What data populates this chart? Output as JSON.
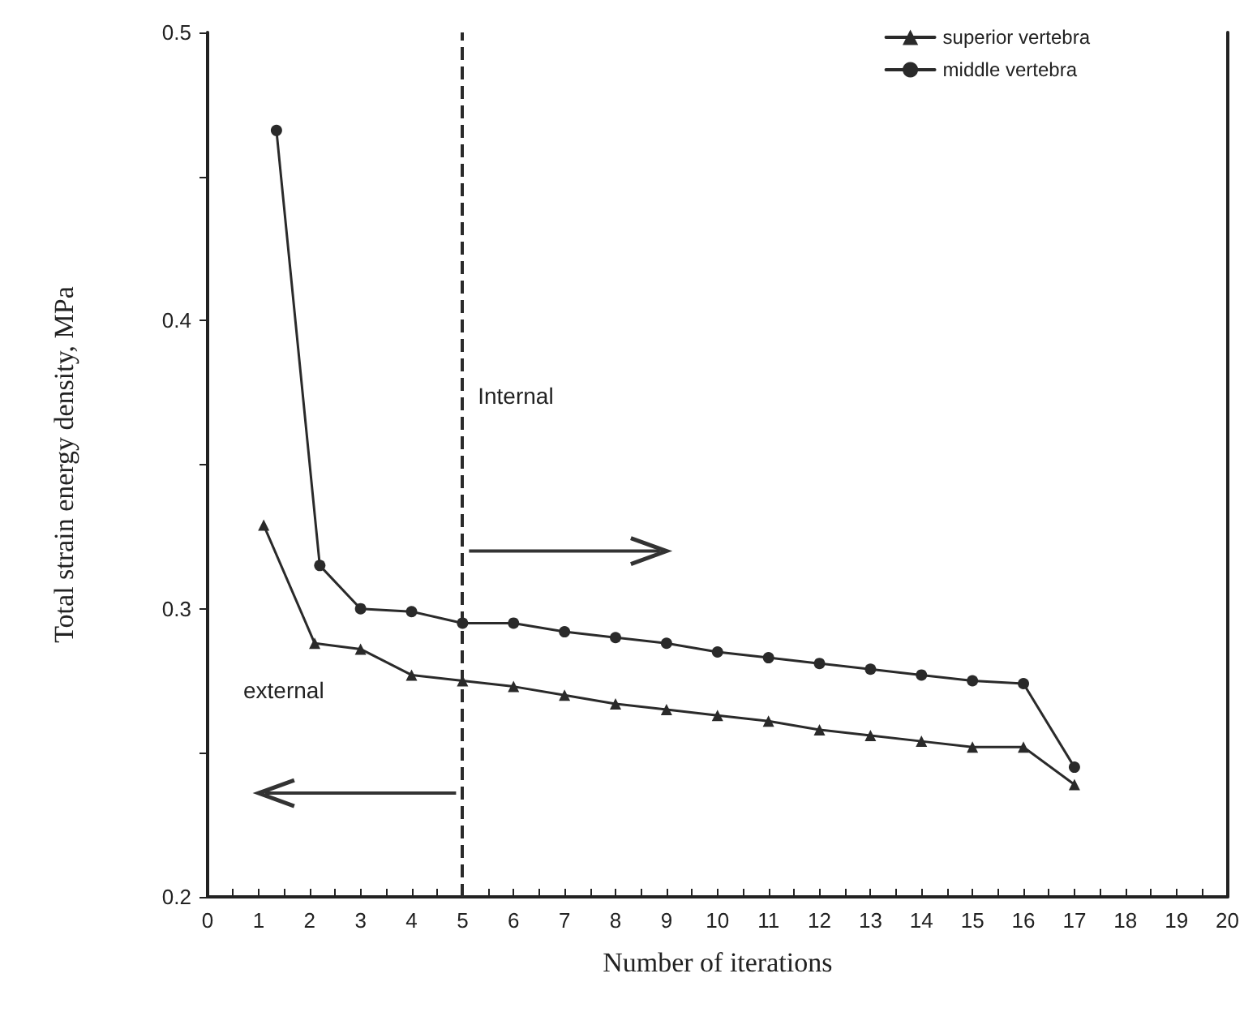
{
  "chart_data": {
    "type": "line",
    "xlabel": "Number of iterations",
    "ylabel": "Total strain energy density, MPa",
    "series": [
      {
        "name": "superior vertebra",
        "color": "#2a2a2a",
        "marker": "triangle",
        "x": [
          1.1,
          2.1,
          3,
          4,
          5,
          6,
          7,
          8,
          9,
          10,
          11,
          12,
          13,
          14,
          15,
          16,
          17
        ],
        "values": [
          0.329,
          0.288,
          0.286,
          0.277,
          0.275,
          0.273,
          0.27,
          0.267,
          0.265,
          0.263,
          0.261,
          0.258,
          0.256,
          0.254,
          0.252,
          0.252,
          0.239
        ]
      },
      {
        "name": "middle vertebra",
        "color": "#2a2a2a",
        "marker": "circle",
        "x": [
          1.35,
          2.2,
          3,
          4,
          5,
          6,
          7,
          8,
          9,
          10,
          11,
          12,
          13,
          14,
          15,
          16,
          17
        ],
        "values": [
          0.466,
          0.315,
          0.3,
          0.299,
          0.295,
          0.295,
          0.292,
          0.29,
          0.288,
          0.285,
          0.283,
          0.281,
          0.279,
          0.277,
          0.275,
          0.274,
          0.245
        ]
      }
    ],
    "xlim": [
      0,
      20
    ],
    "xticks": [
      0,
      1,
      2,
      3,
      4,
      5,
      6,
      7,
      8,
      9,
      10,
      11,
      12,
      13,
      14,
      15,
      16,
      17,
      18,
      19,
      20
    ],
    "ylim": [
      0.2,
      0.5
    ],
    "yticks": [
      0.2,
      0.3,
      0.4,
      0.5
    ],
    "ref_lines": [
      {
        "axis": "x",
        "value": 5,
        "line_style": "dashed",
        "color": "#2a2a2a"
      }
    ],
    "annotations": [
      "Internal",
      "external"
    ],
    "legend": "top right",
    "grid": false
  }
}
